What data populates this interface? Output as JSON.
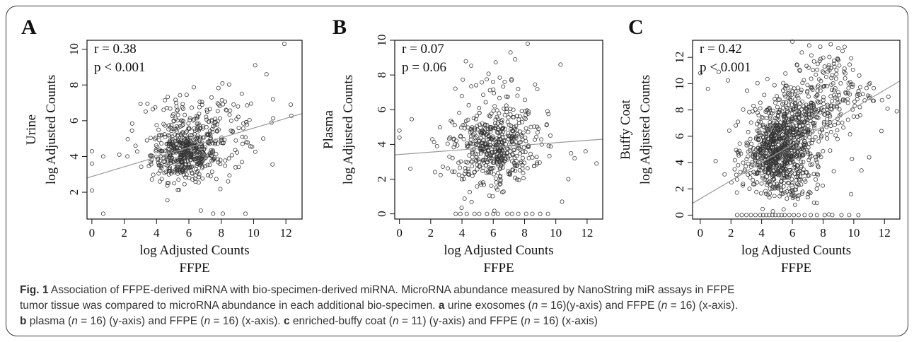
{
  "chart_data": [
    {
      "type": "scatter",
      "panel_label": "A",
      "r_text": "r = 0.38",
      "p_text": "p < 0.001",
      "ylabel_lines": [
        "Urine",
        "log Adjusted Counts"
      ],
      "xlabel_lines": [
        "log Adjusted Counts",
        "FFPE"
      ],
      "xlim": [
        -0.3,
        13
      ],
      "ylim": [
        0.5,
        10.5
      ],
      "xticks": [
        0,
        2,
        4,
        6,
        8,
        10,
        12
      ],
      "yticks": [
        2,
        4,
        6,
        8,
        10
      ],
      "grid": false,
      "regression": {
        "x": [
          -0.3,
          13
        ],
        "y": [
          2.8,
          6.4
        ]
      },
      "clusters": [
        {
          "cx": 5.7,
          "cy": 4.1,
          "sx": 1.0,
          "sy": 0.75,
          "n": 420
        },
        {
          "cx": 7.6,
          "cy": 5.4,
          "sx": 1.5,
          "sy": 1.1,
          "n": 150
        },
        {
          "cx": 5.2,
          "cy": 5.8,
          "sx": 1.3,
          "sy": 1.0,
          "n": 50
        }
      ],
      "extra_points": [
        [
          0.0,
          4.3
        ],
        [
          0.0,
          3.6
        ],
        [
          0.0,
          2.1
        ],
        [
          0.7,
          4.0
        ],
        [
          0.7,
          0.8
        ],
        [
          1.7,
          4.1
        ],
        [
          2.2,
          4.0
        ],
        [
          2.7,
          4.6
        ],
        [
          7.5,
          0.8
        ],
        [
          8.1,
          0.8
        ],
        [
          9.5,
          0.8
        ],
        [
          10.1,
          9.1
        ],
        [
          10.8,
          8.6
        ],
        [
          11.2,
          7.2
        ],
        [
          11.9,
          10.3
        ],
        [
          12.3,
          6.9
        ],
        [
          10.6,
          5.0
        ]
      ]
    },
    {
      "type": "scatter",
      "panel_label": "B",
      "r_text": "r = 0.07",
      "p_text": "p = 0.06",
      "ylabel_lines": [
        "Plasma",
        "log Adjusted Counts"
      ],
      "xlabel_lines": [
        "log Adjusted Counts",
        "FFPE"
      ],
      "xlim": [
        -0.3,
        13
      ],
      "ylim": [
        -0.3,
        10
      ],
      "xticks": [
        0,
        2,
        4,
        6,
        8,
        10,
        12
      ],
      "yticks": [
        0,
        2,
        4,
        6,
        8,
        10
      ],
      "grid": false,
      "regression": {
        "x": [
          -0.3,
          13
        ],
        "y": [
          3.4,
          4.3
        ]
      },
      "clusters": [
        {
          "cx": 6.0,
          "cy": 3.9,
          "sx": 1.3,
          "sy": 1.0,
          "n": 380
        },
        {
          "cx": 6.8,
          "cy": 5.2,
          "sx": 1.6,
          "sy": 1.6,
          "n": 110
        },
        {
          "cx": 5.5,
          "cy": 2.4,
          "sx": 1.2,
          "sy": 0.7,
          "n": 40
        }
      ],
      "zero_row": [
        3.6,
        3.9,
        4.3,
        4.8,
        5.1,
        5.6,
        6.0,
        6.3,
        6.9,
        7.2,
        7.6,
        8.1,
        8.5,
        9.0,
        9.5
      ],
      "extra_points": [
        [
          0.0,
          4.8
        ],
        [
          0.0,
          4.4
        ],
        [
          0.7,
          2.6
        ],
        [
          2.4,
          3.9
        ],
        [
          7.1,
          9.3
        ],
        [
          8.2,
          9.8
        ],
        [
          7.4,
          8.9
        ],
        [
          10.3,
          8.6
        ],
        [
          11.2,
          3.2
        ],
        [
          11.9,
          3.6
        ],
        [
          12.6,
          2.9
        ],
        [
          10.8,
          2.0
        ],
        [
          10.4,
          0.7
        ]
      ]
    },
    {
      "type": "scatter",
      "panel_label": "C",
      "r_text": "r = 0.42",
      "p_text": "p < 0.001",
      "ylabel_lines": [
        "Buffy Coat",
        "log Adjusted Counts"
      ],
      "xlabel_lines": [
        "log Adjusted Counts",
        "FFPE"
      ],
      "xlim": [
        -0.5,
        13
      ],
      "ylim": [
        -0.3,
        13.3
      ],
      "xticks": [
        0,
        2,
        4,
        6,
        8,
        10,
        12
      ],
      "yticks": [
        0,
        2,
        4,
        6,
        8,
        10,
        12
      ],
      "grid": false,
      "regression": {
        "x": [
          -0.5,
          13
        ],
        "y": [
          0.9,
          10.2
        ]
      },
      "clusters": [
        {
          "cx": 4.9,
          "cy": 4.9,
          "sx": 1.0,
          "sy": 1.2,
          "n": 520
        },
        {
          "cx": 6.2,
          "cy": 7.3,
          "sx": 1.3,
          "sy": 1.4,
          "n": 320
        },
        {
          "cx": 8.6,
          "cy": 9.6,
          "sx": 1.3,
          "sy": 1.4,
          "n": 160
        },
        {
          "cx": 5.2,
          "cy": 2.6,
          "sx": 1.4,
          "sy": 1.0,
          "n": 160
        }
      ],
      "zero_row": [
        2.4,
        2.7,
        3.0,
        3.3,
        3.6,
        3.9,
        4.1,
        4.3,
        4.5,
        4.7,
        4.9,
        5.1,
        5.3,
        5.5,
        5.8,
        6.1,
        6.4,
        6.8,
        7.2,
        7.6,
        8.1,
        8.6,
        9.2,
        9.7,
        10.3
      ],
      "extra_points": [
        [
          0.0,
          10.8
        ],
        [
          0.5,
          9.6
        ],
        [
          1.2,
          10.9
        ],
        [
          6.0,
          13.2
        ],
        [
          7.1,
          12.9
        ],
        [
          8.5,
          13.0
        ],
        [
          9.0,
          12.7
        ],
        [
          9.4,
          12.8
        ],
        [
          12.2,
          8.1
        ],
        [
          11.8,
          6.4
        ],
        [
          12.8,
          7.9
        ],
        [
          11.0,
          4.4
        ],
        [
          10.5,
          3.4
        ],
        [
          1.0,
          4.1
        ]
      ]
    }
  ],
  "caption": {
    "fig_label": "Fig. 1",
    "lines": [
      [
        {
          "b": true,
          "t": "Fig. 1"
        },
        {
          "t": " Association of FFPE-derived miRNA with bio-specimen-derived miRNA. MicroRNA abundance measured by NanoString miR assays in FFPE"
        }
      ],
      [
        {
          "t": "tumor tissue was compared to microRNA abundance in each additional bio-specimen. "
        },
        {
          "b": true,
          "t": "a"
        },
        {
          "t": " urine exosomes ("
        },
        {
          "i": true,
          "t": "n"
        },
        {
          "t": " = 16)(y-axis) and FFPE ("
        },
        {
          "i": true,
          "t": "n"
        },
        {
          "t": " = 16) (x-axis)."
        }
      ],
      [
        {
          "b": true,
          "t": "b"
        },
        {
          "t": " plasma ("
        },
        {
          "i": true,
          "t": "n"
        },
        {
          "t": " = 16) (y-axis) and FFPE ("
        },
        {
          "i": true,
          "t": "n"
        },
        {
          "t": " = 16) (x-axis). "
        },
        {
          "b": true,
          "t": "c"
        },
        {
          "t": " enriched-buffy coat ("
        },
        {
          "i": true,
          "t": "n"
        },
        {
          "t": " = 11) (y-axis) and FFPE ("
        },
        {
          "i": true,
          "t": "n"
        },
        {
          "t": " = 16) (x-axis)"
        }
      ]
    ]
  },
  "colors": {
    "frame": "#333333",
    "point": "#333333",
    "axis": "#111111",
    "regression": "#9a9a9a",
    "caption": "#333333"
  }
}
